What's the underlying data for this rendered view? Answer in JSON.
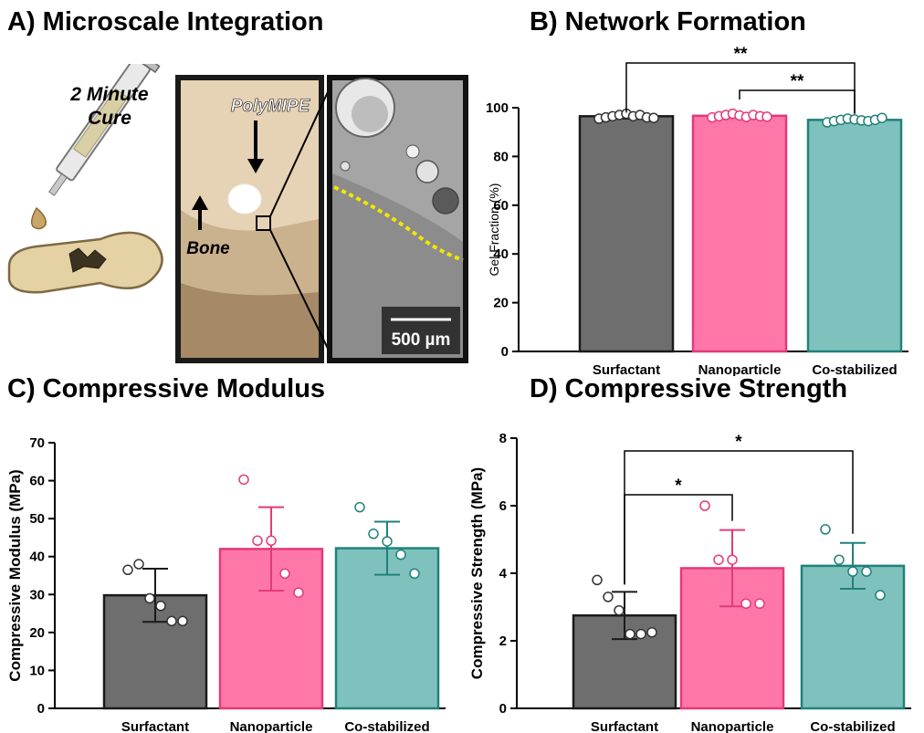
{
  "panels": {
    "a": {
      "title": "A) Microscale Integration",
      "cure_line1": "2 Minute",
      "cure_line2": "Cure",
      "polymipe_label": "PolyMIPE",
      "bone_label": "Bone",
      "scale_bar": "500 µm"
    },
    "b": {
      "title": "B) Network Formation"
    },
    "c": {
      "title": "C) Compressive Modulus"
    },
    "d": {
      "title": "D) Compressive Strength"
    }
  },
  "colors": {
    "surfactant": "#6e6e6e",
    "nanoparticle": "#ff77a8",
    "costabilized": "#7fc1bc",
    "surfactant_edge": "#1a1a1a",
    "nanoparticle_edge": "#e23a7a",
    "costabilized_edge": "#1f827b",
    "marker_yellow": "#f2e600"
  },
  "chart_data": [
    {
      "id": "b",
      "type": "bar",
      "title": "B) Network Formation",
      "categories": [
        "Surfactant",
        "Nanoparticle",
        "Co-stabilized"
      ],
      "values": [
        96.5,
        96.7,
        95.0
      ],
      "errors": [
        1.0,
        0.8,
        1.0
      ],
      "points": [
        [
          95.5,
          96,
          96.5,
          97,
          97.5,
          96.5,
          97,
          96,
          95.8
        ],
        [
          96,
          96.5,
          97,
          97.5,
          96.8,
          96.2,
          97,
          96.5,
          96.3
        ],
        [
          94,
          94.5,
          95,
          95.5,
          95.2,
          94.8,
          94.5,
          95,
          95.8
        ]
      ],
      "xlabel": "",
      "ylabel": "Gel Fraction (%)",
      "ylim": [
        0,
        100
      ],
      "yticks": [
        0,
        20,
        40,
        60,
        80,
        100
      ],
      "significance": [
        {
          "from": 0,
          "to": 2,
          "label": "**"
        },
        {
          "from": 1,
          "to": 2,
          "label": "**"
        }
      ]
    },
    {
      "id": "c",
      "type": "bar",
      "title": "C) Compressive Modulus",
      "categories": [
        "Surfactant",
        "Nanoparticle",
        "Co-stabilized"
      ],
      "values": [
        29.8,
        42.0,
        42.2
      ],
      "errors": [
        7.0,
        11.0,
        7.0
      ],
      "points": [
        [
          36.5,
          38,
          29,
          27,
          23,
          23
        ],
        [
          60.3,
          44.2,
          44.2,
          35.5,
          30.5
        ],
        [
          53,
          46,
          44,
          40.5,
          35.5
        ]
      ],
      "xlabel": "",
      "ylabel": "Compressive Modulus (MPa)",
      "ylim": [
        0,
        70
      ],
      "yticks": [
        0,
        10,
        20,
        30,
        40,
        50,
        60,
        70
      ],
      "significance": []
    },
    {
      "id": "d",
      "type": "bar",
      "title": "D) Compressive Strength",
      "categories": [
        "Surfactant",
        "Nanoparticle",
        "Co-stabilized"
      ],
      "values": [
        2.75,
        4.15,
        4.22
      ],
      "errors": [
        0.7,
        1.13,
        0.68
      ],
      "points": [
        [
          3.8,
          3.3,
          2.9,
          2.2,
          2.2,
          2.25
        ],
        [
          6.0,
          4.4,
          4.4,
          3.1,
          3.1
        ],
        [
          5.3,
          4.4,
          4.05,
          4.05,
          3.35
        ]
      ],
      "xlabel": "",
      "ylabel": "Compressive Strength (MPa)",
      "ylim": [
        0,
        8
      ],
      "yticks": [
        0,
        2,
        4,
        6,
        8
      ],
      "significance": [
        {
          "from": 0,
          "to": 1,
          "label": "*"
        },
        {
          "from": 0,
          "to": 2,
          "label": "*"
        }
      ]
    }
  ]
}
